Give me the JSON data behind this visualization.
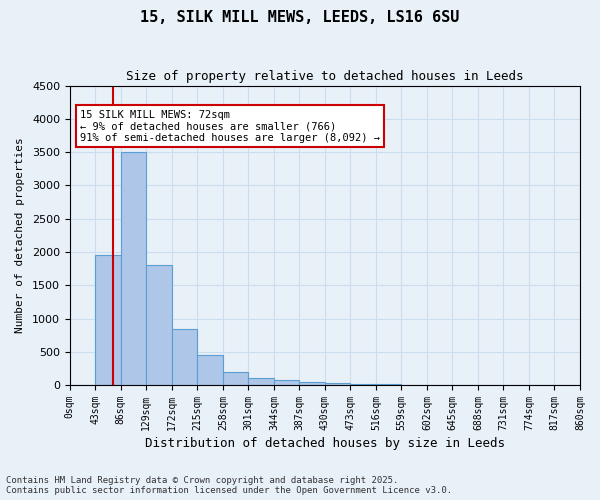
{
  "title1": "15, SILK MILL MEWS, LEEDS, LS16 6SU",
  "title2": "Size of property relative to detached houses in Leeds",
  "xlabel": "Distribution of detached houses by size in Leeds",
  "ylabel": "Number of detached properties",
  "bin_edges": [
    0,
    43,
    86,
    129,
    172,
    215,
    258,
    301,
    344,
    387,
    430,
    473,
    516,
    559,
    602,
    645,
    688,
    731,
    774,
    817,
    860
  ],
  "bin_labels": [
    "0sqm",
    "43sqm",
    "86sqm",
    "129sqm",
    "172sqm",
    "215sqm",
    "258sqm",
    "301sqm",
    "344sqm",
    "387sqm",
    "430sqm",
    "473sqm",
    "516sqm",
    "559sqm",
    "602sqm",
    "645sqm",
    "688sqm",
    "731sqm",
    "774sqm",
    "817sqm",
    "860sqm"
  ],
  "bar_heights": [
    0,
    1950,
    3500,
    1800,
    850,
    450,
    200,
    100,
    70,
    50,
    30,
    20,
    10,
    8,
    5,
    3,
    2,
    1,
    1,
    0
  ],
  "bar_color": "#aec6e8",
  "bar_edge_color": "#5a9fd4",
  "property_line_x": 72,
  "annotation_text": "15 SILK MILL MEWS: 72sqm\n← 9% of detached houses are smaller (766)\n91% of semi-detached houses are larger (8,092) →",
  "annotation_box_color": "#ffffff",
  "annotation_box_edge": "#cc0000",
  "vline_color": "#cc0000",
  "ylim": [
    0,
    4500
  ],
  "yticks": [
    0,
    500,
    1000,
    1500,
    2000,
    2500,
    3000,
    3500,
    4000,
    4500
  ],
  "grid_color": "#ccddee",
  "background_color": "#e8f0f8",
  "footer1": "Contains HM Land Registry data © Crown copyright and database right 2025.",
  "footer2": "Contains public sector information licensed under the Open Government Licence v3.0."
}
